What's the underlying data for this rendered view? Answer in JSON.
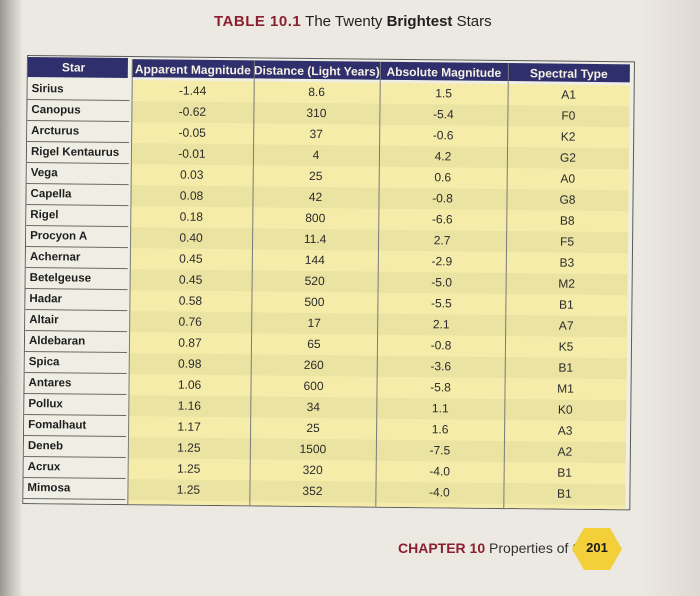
{
  "title": {
    "prefix": "TABLE 10.1",
    "text_regular": "The Twenty",
    "text_bold": "Brightest",
    "text_end": "Stars"
  },
  "table": {
    "headers": {
      "star": "Star",
      "apparent": "Apparent Magnitude",
      "distance": "Distance (Light Years)",
      "absolute": "Absolute Magnitude",
      "spectral": "Spectral Type"
    },
    "rows": [
      {
        "star": "Sirius",
        "apparent": "-1.44",
        "distance": "8.6",
        "absolute": "1.5",
        "spectral": "A1"
      },
      {
        "star": "Canopus",
        "apparent": "-0.62",
        "distance": "310",
        "absolute": "-5.4",
        "spectral": "F0"
      },
      {
        "star": "Arcturus",
        "apparent": "-0.05",
        "distance": "37",
        "absolute": "-0.6",
        "spectral": "K2"
      },
      {
        "star": "Rigel Kentaurus",
        "apparent": "-0.01",
        "distance": "4",
        "absolute": "4.2",
        "spectral": "G2"
      },
      {
        "star": "Vega",
        "apparent": "0.03",
        "distance": "25",
        "absolute": "0.6",
        "spectral": "A0"
      },
      {
        "star": "Capella",
        "apparent": "0.08",
        "distance": "42",
        "absolute": "-0.8",
        "spectral": "G8"
      },
      {
        "star": "Rigel",
        "apparent": "0.18",
        "distance": "800",
        "absolute": "-6.6",
        "spectral": "B8"
      },
      {
        "star": "Procyon A",
        "apparent": "0.40",
        "distance": "11.4",
        "absolute": "2.7",
        "spectral": "F5"
      },
      {
        "star": "Achernar",
        "apparent": "0.45",
        "distance": "144",
        "absolute": "-2.9",
        "spectral": "B3"
      },
      {
        "star": "Betelgeuse",
        "apparent": "0.45",
        "distance": "520",
        "absolute": "-5.0",
        "spectral": "M2"
      },
      {
        "star": "Hadar",
        "apparent": "0.58",
        "distance": "500",
        "absolute": "-5.5",
        "spectral": "B1"
      },
      {
        "star": "Altair",
        "apparent": "0.76",
        "distance": "17",
        "absolute": "2.1",
        "spectral": "A7"
      },
      {
        "star": "Aldebaran",
        "apparent": "0.87",
        "distance": "65",
        "absolute": "-0.8",
        "spectral": "K5"
      },
      {
        "star": "Spica",
        "apparent": "0.98",
        "distance": "260",
        "absolute": "-3.6",
        "spectral": "B1"
      },
      {
        "star": "Antares",
        "apparent": "1.06",
        "distance": "600",
        "absolute": "-5.8",
        "spectral": "M1"
      },
      {
        "star": "Pollux",
        "apparent": "1.16",
        "distance": "34",
        "absolute": "1.1",
        "spectral": "K0"
      },
      {
        "star": "Fomalhaut",
        "apparent": "1.17",
        "distance": "25",
        "absolute": "1.6",
        "spectral": "A3"
      },
      {
        "star": "Deneb",
        "apparent": "1.25",
        "distance": "1500",
        "absolute": "-7.5",
        "spectral": "A2"
      },
      {
        "star": "Acrux",
        "apparent": "1.25",
        "distance": "320",
        "absolute": "-4.0",
        "spectral": "B1"
      },
      {
        "star": "Mimosa",
        "apparent": "1.25",
        "distance": "352",
        "absolute": "-4.0",
        "spectral": "B1"
      }
    ]
  },
  "footer": {
    "chapter": "CHAPTER 10",
    "section": "Properties of Stars",
    "page_number": "201"
  },
  "colors": {
    "header_bg": "#2f2f6d",
    "row_bg": "#f5ecaa",
    "accent_red": "#8a2030",
    "badge": "#f3cf3a"
  }
}
